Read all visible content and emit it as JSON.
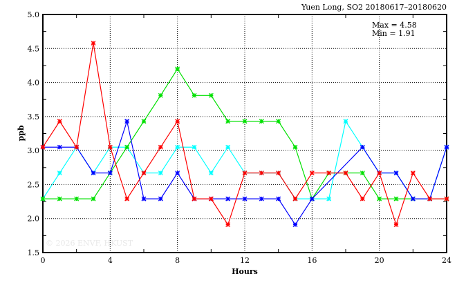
{
  "chart_data": {
    "type": "line",
    "title": "Yuen Long, SO2 20180617–20180620",
    "xlabel": "Hours",
    "ylabel": "ppb",
    "xlim": [
      0,
      24
    ],
    "ylim": [
      1.5,
      5.0
    ],
    "xticks": [
      "0",
      "4",
      "8",
      "12",
      "16",
      "20",
      "24"
    ],
    "yticks": [
      "1.5",
      "2.0",
      "2.5",
      "3.0",
      "3.5",
      "4.0",
      "4.5",
      "5.0"
    ],
    "grid": true,
    "annotation": {
      "max": "Max = 4.58",
      "min": "Min = 1.91"
    },
    "watermark": "© 2026  ENVF, HKUST",
    "x": [
      0,
      1,
      2,
      3,
      4,
      5,
      6,
      7,
      8,
      9,
      10,
      11,
      12,
      13,
      14,
      15,
      16,
      17,
      18,
      19,
      20,
      21,
      22,
      23,
      24
    ],
    "series": [
      {
        "name": "cyan",
        "color": "#00ffff",
        "values": [
          2.29,
          2.67,
          3.05,
          2.67,
          3.05,
          3.05,
          2.67,
          2.67,
          3.05,
          3.05,
          2.67,
          3.05,
          2.67,
          2.67,
          2.67,
          2.29,
          2.29,
          2.29,
          3.43,
          3.05,
          2.67,
          2.67,
          2.29,
          2.29,
          3.05
        ]
      },
      {
        "name": "green",
        "color": "#00e000",
        "values": [
          2.29,
          2.29,
          2.29,
          2.29,
          2.67,
          3.05,
          3.43,
          3.81,
          4.2,
          3.81,
          3.81,
          3.43,
          3.43,
          3.43,
          3.43,
          3.05,
          2.29,
          2.67,
          2.67,
          2.67,
          2.29,
          2.29,
          2.29,
          2.29,
          2.29
        ]
      },
      {
        "name": "blue",
        "color": "#0000ff",
        "values": [
          3.05,
          3.05,
          3.05,
          2.67,
          2.67,
          3.43,
          2.29,
          2.29,
          2.67,
          2.29,
          2.29,
          2.29,
          2.29,
          2.29,
          2.29,
          1.91,
          2.29,
          null,
          null,
          3.05,
          2.67,
          2.67,
          2.29,
          2.29,
          3.05
        ]
      },
      {
        "name": "red",
        "color": "#ff0000",
        "values": [
          3.05,
          3.43,
          3.05,
          4.58,
          3.05,
          2.29,
          2.67,
          3.05,
          3.43,
          2.29,
          2.29,
          1.91,
          2.67,
          2.67,
          2.67,
          2.29,
          2.67,
          2.67,
          2.67,
          2.29,
          2.67,
          1.91,
          2.67,
          2.29,
          2.29
        ]
      }
    ]
  }
}
